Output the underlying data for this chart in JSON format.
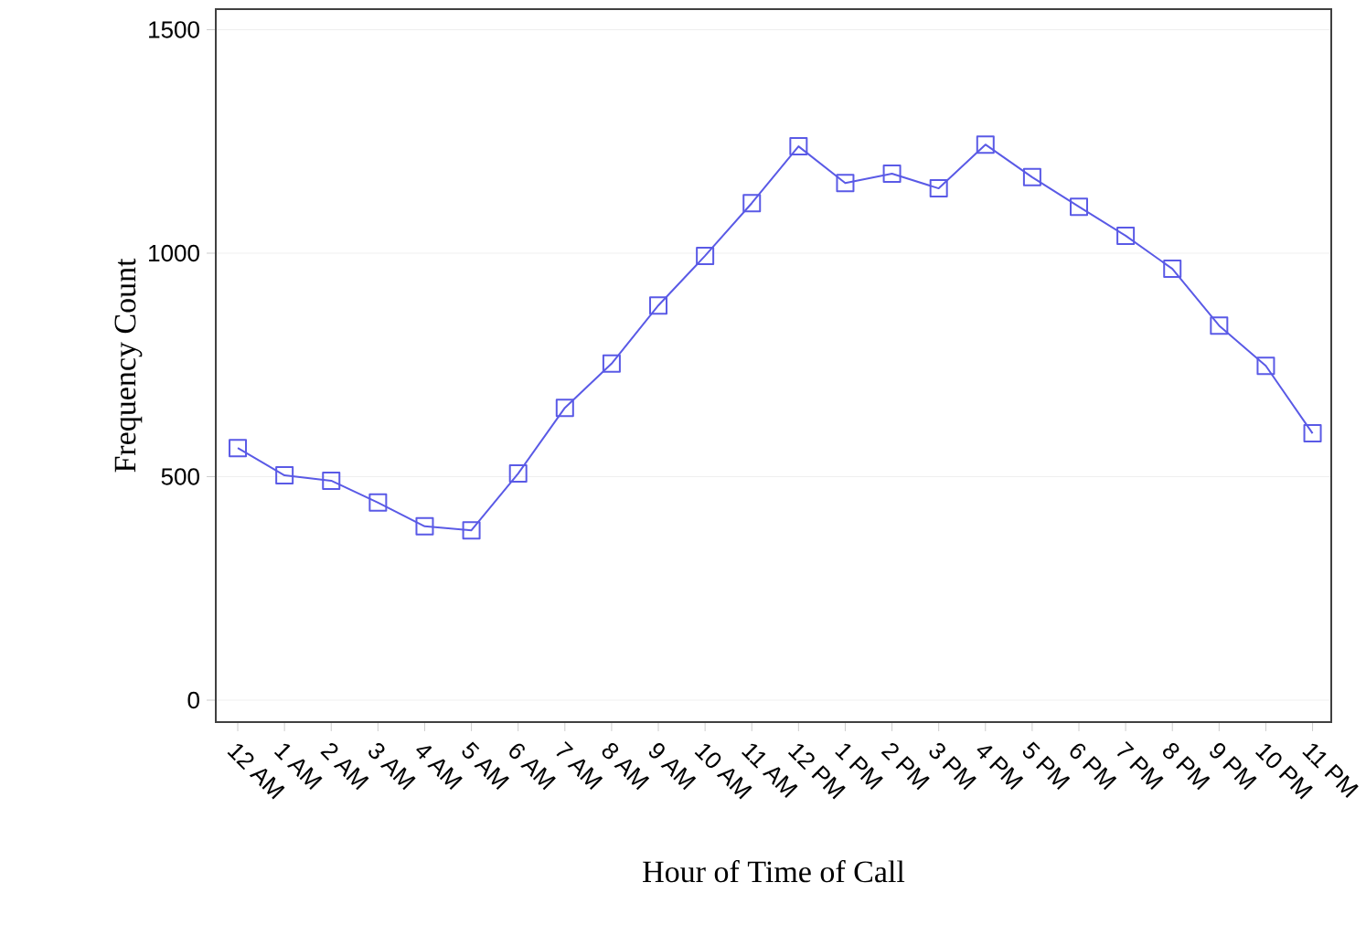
{
  "chart_data": {
    "type": "line",
    "xlabel": "Hour of Time of Call",
    "ylabel": "Frequency Count",
    "categories": [
      "12 AM",
      "1 AM",
      "2 AM",
      "3 AM",
      "4 AM",
      "5 AM",
      "6 AM",
      "7 AM",
      "8 AM",
      "9 AM",
      "10 AM",
      "11 AM",
      "12 PM",
      "1 PM",
      "2 PM",
      "3 PM",
      "4 PM",
      "5 PM",
      "6 PM",
      "7 PM",
      "8 PM",
      "9 PM",
      "10 PM",
      "11 PM"
    ],
    "series": [
      {
        "color": "#5a5ae6",
        "values": [
          564,
          503,
          491,
          442,
          389,
          380,
          507,
          654,
          753,
          883,
          994,
          1112,
          1239,
          1157,
          1178,
          1145,
          1243,
          1170,
          1104,
          1039,
          965,
          838,
          748,
          597
        ]
      }
    ],
    "ylim": [
      -49,
      1546
    ],
    "yticks": [
      0,
      500,
      1000,
      1500
    ],
    "grid": "y",
    "marker": "square",
    "line_style": "solid"
  }
}
